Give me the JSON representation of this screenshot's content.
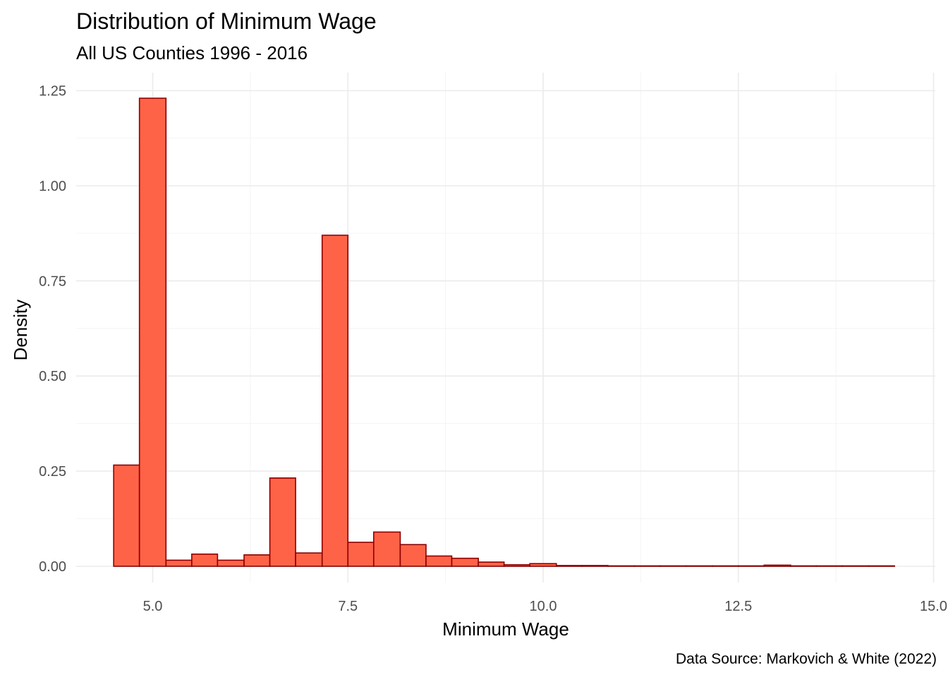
{
  "chart_data": {
    "type": "bar",
    "subtype": "histogram",
    "title": "Distribution of Minimum Wage",
    "subtitle": "All US Counties 1996 - 2016",
    "xlabel": "Minimum Wage",
    "ylabel": "Density",
    "caption": "Data Source: Markovich & White (2022)",
    "xlim": [
      4.0,
      15.0
    ],
    "ylim": [
      0,
      1.25
    ],
    "x_ticks": [
      5.0,
      7.5,
      10.0,
      12.5,
      15.0
    ],
    "x_tick_labels": [
      "5.0",
      "7.5",
      "10.0",
      "12.5",
      "15.0"
    ],
    "y_ticks": [
      0,
      0.25,
      0.5,
      0.75,
      1.0,
      1.25
    ],
    "y_tick_labels": [
      "0.00",
      "0.25",
      "0.50",
      "0.75",
      "1.00",
      "1.25"
    ],
    "grid": true,
    "legend": "none",
    "bin_width": 0.3333,
    "bins": [
      {
        "x0": 4.5,
        "x1": 4.83,
        "density": 0.266
      },
      {
        "x0": 4.83,
        "x1": 5.17,
        "density": 1.23
      },
      {
        "x0": 5.17,
        "x1": 5.5,
        "density": 0.016
      },
      {
        "x0": 5.5,
        "x1": 5.83,
        "density": 0.032
      },
      {
        "x0": 5.83,
        "x1": 6.17,
        "density": 0.016
      },
      {
        "x0": 6.17,
        "x1": 6.5,
        "density": 0.03
      },
      {
        "x0": 6.5,
        "x1": 6.83,
        "density": 0.232
      },
      {
        "x0": 6.83,
        "x1": 7.17,
        "density": 0.035
      },
      {
        "x0": 7.17,
        "x1": 7.5,
        "density": 0.87
      },
      {
        "x0": 7.5,
        "x1": 7.83,
        "density": 0.063
      },
      {
        "x0": 7.83,
        "x1": 8.17,
        "density": 0.09
      },
      {
        "x0": 8.17,
        "x1": 8.5,
        "density": 0.057
      },
      {
        "x0": 8.5,
        "x1": 8.83,
        "density": 0.027
      },
      {
        "x0": 8.83,
        "x1": 9.17,
        "density": 0.021
      },
      {
        "x0": 9.17,
        "x1": 9.5,
        "density": 0.011
      },
      {
        "x0": 9.5,
        "x1": 9.83,
        "density": 0.004
      },
      {
        "x0": 9.83,
        "x1": 10.17,
        "density": 0.007
      },
      {
        "x0": 10.17,
        "x1": 10.5,
        "density": 0.002
      },
      {
        "x0": 10.5,
        "x1": 10.83,
        "density": 0.002
      },
      {
        "x0": 10.83,
        "x1": 11.17,
        "density": 0.001
      },
      {
        "x0": 11.17,
        "x1": 11.5,
        "density": 0.001
      },
      {
        "x0": 11.5,
        "x1": 11.83,
        "density": 0.001
      },
      {
        "x0": 11.83,
        "x1": 12.17,
        "density": 0.001
      },
      {
        "x0": 12.17,
        "x1": 12.5,
        "density": 0.001
      },
      {
        "x0": 12.5,
        "x1": 12.83,
        "density": 0.001
      },
      {
        "x0": 12.83,
        "x1": 13.17,
        "density": 0.003
      },
      {
        "x0": 13.17,
        "x1": 13.5,
        "density": 0.001
      },
      {
        "x0": 13.5,
        "x1": 13.83,
        "density": 0.001
      },
      {
        "x0": 13.83,
        "x1": 14.17,
        "density": 0.001
      },
      {
        "x0": 14.17,
        "x1": 14.5,
        "density": 0.001
      }
    ],
    "colors": {
      "bar_fill": "#FF6347",
      "bar_outline": "#8B0000",
      "grid": "#EBEBEB",
      "tick_text": "#4D4D4D",
      "text": "#000000"
    }
  }
}
